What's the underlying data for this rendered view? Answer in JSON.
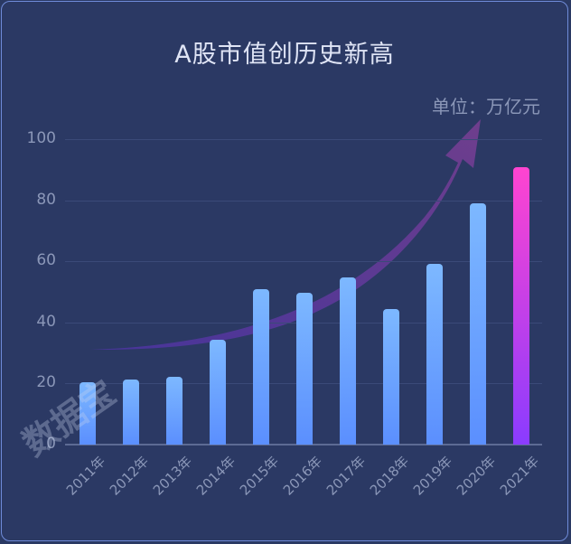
{
  "title": "A股市值创历史新高",
  "unit_label": "单位：万亿元",
  "watermark": "数据宝",
  "y_ticks": [
    "0",
    "20",
    "40",
    "60",
    "80",
    "100"
  ],
  "x_labels": [
    "2011年",
    "2012年",
    "2013年",
    "2014年",
    "2015年",
    "2016年",
    "2017年",
    "2018年",
    "2019年",
    "2020年",
    "2021年"
  ],
  "colors": {
    "background": "#2b3964",
    "bar_top": "#7db8ff",
    "bar_bottom": "#5b8ffe",
    "highlight_top": "#ff44d0",
    "highlight_bottom": "#8a3cff",
    "arrow": "#6a3f9a",
    "text": "#8b97b8",
    "title": "#dfe4f5"
  },
  "chart_data": {
    "type": "bar",
    "title": "A股市值创历史新高",
    "subtitle": "单位：万亿元",
    "xlabel": "",
    "ylabel": "万亿元",
    "categories": [
      "2011年",
      "2012年",
      "2013年",
      "2014年",
      "2015年",
      "2016年",
      "2017年",
      "2018年",
      "2019年",
      "2020年",
      "2021年"
    ],
    "values": [
      20.4,
      21.3,
      22.2,
      34.3,
      50.9,
      49.7,
      54.7,
      44.4,
      59.2,
      79.0,
      90.8
    ],
    "highlight_index": 10,
    "ylim": [
      0,
      100
    ],
    "y_ticks": [
      0,
      20,
      40,
      60,
      80,
      100
    ],
    "grid": true,
    "legend": "none",
    "annotations": [
      "upward trend arrow"
    ]
  }
}
